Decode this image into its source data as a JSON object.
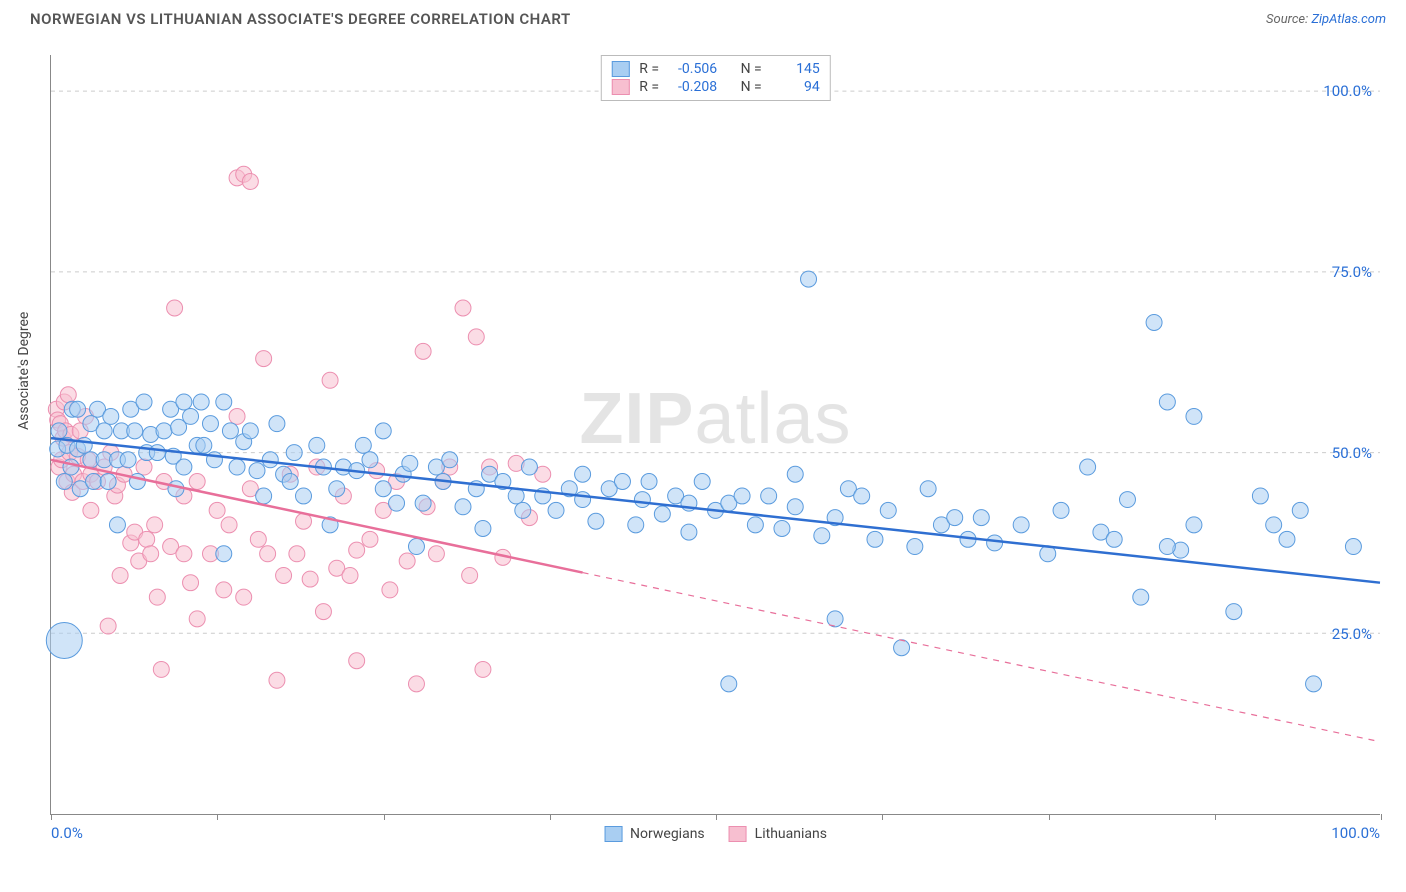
{
  "title": "NORWEGIAN VS LITHUANIAN ASSOCIATE'S DEGREE CORRELATION CHART",
  "source_label": "Source:",
  "source_name": "ZipAtlas.com",
  "y_axis_label": "Associate's Degree",
  "watermark_bold": "ZIP",
  "watermark_rest": "atlas",
  "chart": {
    "type": "scatter",
    "xlim": [
      0,
      100
    ],
    "ylim": [
      0,
      105
    ],
    "x_ticks": [
      0,
      12.5,
      25,
      37.5,
      50,
      62.5,
      75,
      87.5,
      100
    ],
    "x_tick_labels": {
      "0": "0.0%",
      "100": "100.0%"
    },
    "y_gridlines": [
      25,
      50,
      75,
      100
    ],
    "y_tick_labels": {
      "25": "25.0%",
      "50": "50.0%",
      "75": "75.0%",
      "100": "100.0%"
    },
    "grid_color": "#cccccc",
    "axis_color": "#888888",
    "background_color": "#ffffff",
    "series": [
      {
        "name": "Norwegians",
        "key": "norwegians",
        "marker_fill": "#a9cef2",
        "marker_stroke": "#5a9bde",
        "marker_fill_opacity": 0.55,
        "marker_radius": 8,
        "trend_color": "#2f6fd1",
        "trend_width": 2.5,
        "trend": {
          "x1": 0,
          "y1": 52,
          "x2": 100,
          "y2": 32,
          "solid_until_x": 100
        },
        "R": "-0.506",
        "N": "145",
        "points": [
          [
            0.5,
            50.5
          ],
          [
            0.6,
            53
          ],
          [
            1,
            24,
            18
          ],
          [
            1,
            46
          ],
          [
            1.2,
            51
          ],
          [
            1.5,
            48
          ],
          [
            1.6,
            56
          ],
          [
            2,
            50.5
          ],
          [
            2,
            56
          ],
          [
            2.2,
            45
          ],
          [
            2.5,
            51
          ],
          [
            3,
            49
          ],
          [
            3,
            54
          ],
          [
            3.2,
            46
          ],
          [
            3.5,
            56
          ],
          [
            4,
            49
          ],
          [
            4,
            53
          ],
          [
            4.3,
            46
          ],
          [
            4.5,
            55
          ],
          [
            5,
            49
          ],
          [
            5,
            40
          ],
          [
            5.3,
            53
          ],
          [
            5.8,
            49
          ],
          [
            6,
            56
          ],
          [
            6.3,
            53
          ],
          [
            6.5,
            46
          ],
          [
            7,
            57
          ],
          [
            7.2,
            50
          ],
          [
            7.5,
            52.5
          ],
          [
            8,
            50
          ],
          [
            8.5,
            53
          ],
          [
            9,
            56
          ],
          [
            9.2,
            49.5
          ],
          [
            9.4,
            45
          ],
          [
            9.6,
            53.5
          ],
          [
            10,
            48
          ],
          [
            10,
            57
          ],
          [
            10.5,
            55
          ],
          [
            11,
            51
          ],
          [
            11.3,
            57
          ],
          [
            11.5,
            51
          ],
          [
            12,
            54
          ],
          [
            12.3,
            49
          ],
          [
            13,
            57
          ],
          [
            13,
            36
          ],
          [
            13.5,
            53
          ],
          [
            14,
            48
          ],
          [
            14.5,
            51.5
          ],
          [
            15,
            53
          ],
          [
            15.5,
            47.5
          ],
          [
            16,
            44
          ],
          [
            16.5,
            49
          ],
          [
            17,
            54
          ],
          [
            17.5,
            47
          ],
          [
            18,
            46
          ],
          [
            18.3,
            50
          ],
          [
            19,
            44
          ],
          [
            20,
            51
          ],
          [
            20.5,
            48
          ],
          [
            21,
            40
          ],
          [
            21.5,
            45
          ],
          [
            22,
            48
          ],
          [
            23,
            47.5
          ],
          [
            23.5,
            51
          ],
          [
            24,
            49
          ],
          [
            25,
            45
          ],
          [
            25,
            53
          ],
          [
            26,
            43
          ],
          [
            26.5,
            47
          ],
          [
            27,
            48.5
          ],
          [
            27.5,
            37
          ],
          [
            28,
            43
          ],
          [
            29,
            48
          ],
          [
            29.5,
            46
          ],
          [
            30,
            49
          ],
          [
            31,
            42.5
          ],
          [
            32,
            45
          ],
          [
            32.5,
            39.5
          ],
          [
            33,
            47
          ],
          [
            34,
            46
          ],
          [
            35,
            44
          ],
          [
            35.5,
            42
          ],
          [
            36,
            48
          ],
          [
            37,
            44
          ],
          [
            38,
            42
          ],
          [
            39,
            45
          ],
          [
            40,
            43.5
          ],
          [
            40,
            47
          ],
          [
            41,
            40.5
          ],
          [
            42,
            45
          ],
          [
            43,
            46
          ],
          [
            44,
            40
          ],
          [
            44.5,
            43.5
          ],
          [
            45,
            46
          ],
          [
            46,
            41.5
          ],
          [
            47,
            44
          ],
          [
            48,
            43
          ],
          [
            48,
            39
          ],
          [
            49,
            46
          ],
          [
            50,
            42
          ],
          [
            51,
            43
          ],
          [
            51,
            18
          ],
          [
            52,
            44
          ],
          [
            53,
            40
          ],
          [
            54,
            44
          ],
          [
            55,
            39.5
          ],
          [
            56,
            47
          ],
          [
            56,
            42.5
          ],
          [
            57,
            74
          ],
          [
            58,
            38.5
          ],
          [
            59,
            27
          ],
          [
            59,
            41
          ],
          [
            60,
            45
          ],
          [
            61,
            44
          ],
          [
            62,
            38
          ],
          [
            63,
            42
          ],
          [
            64,
            23
          ],
          [
            65,
            37
          ],
          [
            66,
            45
          ],
          [
            67,
            40
          ],
          [
            68,
            41
          ],
          [
            69,
            38
          ],
          [
            70,
            41
          ],
          [
            71,
            37.5
          ],
          [
            73,
            40
          ],
          [
            75,
            36
          ],
          [
            76,
            42
          ],
          [
            78,
            48
          ],
          [
            79,
            39
          ],
          [
            80,
            38
          ],
          [
            81,
            43.5
          ],
          [
            82,
            30
          ],
          [
            83,
            68
          ],
          [
            84,
            57
          ],
          [
            85,
            36.5
          ],
          [
            86,
            40
          ],
          [
            89,
            28
          ],
          [
            91,
            44
          ],
          [
            92,
            40
          ],
          [
            93,
            38
          ],
          [
            94,
            42
          ],
          [
            95,
            18
          ],
          [
            98,
            37
          ],
          [
            84,
            37
          ],
          [
            86,
            55
          ]
        ]
      },
      {
        "name": "Lithuanians",
        "key": "lithuanians",
        "marker_fill": "#f7bfd0",
        "marker_stroke": "#ec8fb0",
        "marker_fill_opacity": 0.55,
        "marker_radius": 8,
        "trend_color": "#e86f9a",
        "trend_width": 2.5,
        "trend": {
          "x1": 0,
          "y1": 49,
          "x2": 100,
          "y2": 10,
          "solid_until_x": 40
        },
        "R": "-0.208",
        "N": "94",
        "points": [
          [
            0.4,
            56
          ],
          [
            0.5,
            54.5
          ],
          [
            0.6,
            48
          ],
          [
            0.7,
            54
          ],
          [
            0.8,
            49
          ],
          [
            0.9,
            52
          ],
          [
            1.0,
            57
          ],
          [
            1.1,
            53
          ],
          [
            1.2,
            46
          ],
          [
            1.3,
            58
          ],
          [
            1.4,
            50
          ],
          [
            1.5,
            52.5
          ],
          [
            1.6,
            44.5
          ],
          [
            1.7,
            47
          ],
          [
            2,
            49.5
          ],
          [
            2.2,
            53
          ],
          [
            2.4,
            46
          ],
          [
            2.6,
            55
          ],
          [
            2.8,
            49
          ],
          [
            3,
            47
          ],
          [
            3,
            42
          ],
          [
            3.5,
            46
          ],
          [
            4,
            48
          ],
          [
            4.3,
            26
          ],
          [
            4.5,
            50
          ],
          [
            4.8,
            44
          ],
          [
            5,
            45.5
          ],
          [
            5.2,
            33
          ],
          [
            5.5,
            47
          ],
          [
            6,
            37.5
          ],
          [
            6.3,
            39
          ],
          [
            6.6,
            35
          ],
          [
            7,
            48
          ],
          [
            7.2,
            38
          ],
          [
            7.5,
            36
          ],
          [
            7.8,
            40
          ],
          [
            8,
            30
          ],
          [
            8.3,
            20
          ],
          [
            8.5,
            46
          ],
          [
            9,
            37
          ],
          [
            9.3,
            70
          ],
          [
            10,
            36
          ],
          [
            10,
            44
          ],
          [
            10.5,
            32
          ],
          [
            11,
            46
          ],
          [
            11,
            27
          ],
          [
            12,
            36
          ],
          [
            12.5,
            42
          ],
          [
            13,
            31
          ],
          [
            13.4,
            40
          ],
          [
            14,
            88
          ],
          [
            14.5,
            88.5
          ],
          [
            15,
            87.5
          ],
          [
            14,
            55
          ],
          [
            14.5,
            30
          ],
          [
            15,
            45
          ],
          [
            15.6,
            38
          ],
          [
            16,
            63
          ],
          [
            16.3,
            36
          ],
          [
            17,
            18.5
          ],
          [
            17.5,
            33
          ],
          [
            18,
            47
          ],
          [
            18.5,
            36
          ],
          [
            19,
            40.5
          ],
          [
            19.5,
            32.5
          ],
          [
            20,
            48
          ],
          [
            20.5,
            28
          ],
          [
            21,
            60
          ],
          [
            21.5,
            34
          ],
          [
            22,
            44
          ],
          [
            22.5,
            33
          ],
          [
            23,
            21.2
          ],
          [
            23,
            36.5
          ],
          [
            24,
            38
          ],
          [
            24.5,
            47.5
          ],
          [
            25,
            42
          ],
          [
            25.5,
            31
          ],
          [
            26,
            46
          ],
          [
            26.8,
            35
          ],
          [
            27.5,
            18
          ],
          [
            28,
            64
          ],
          [
            28.3,
            42.5
          ],
          [
            29,
            36
          ],
          [
            29.5,
            46
          ],
          [
            30,
            48
          ],
          [
            31,
            70
          ],
          [
            31.5,
            33
          ],
          [
            32,
            66
          ],
          [
            32.5,
            20
          ],
          [
            33,
            48
          ],
          [
            34,
            35.5
          ],
          [
            35,
            48.5
          ],
          [
            36,
            41
          ],
          [
            37,
            47
          ]
        ]
      }
    ]
  },
  "legend_bottom": [
    {
      "label": "Norwegians",
      "fill": "#a9cef2",
      "stroke": "#5a9bde"
    },
    {
      "label": "Lithuanians",
      "fill": "#f7bfd0",
      "stroke": "#ec8fb0"
    }
  ],
  "legend_top_labels": {
    "R": "R =",
    "N": "N ="
  }
}
